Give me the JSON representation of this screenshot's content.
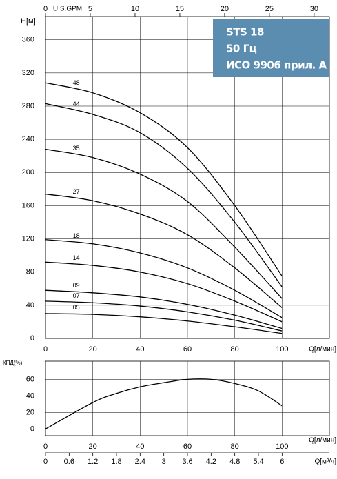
{
  "chart_data": [
    {
      "type": "line",
      "annotations": [
        "STS 18",
        "50 Гц",
        "ИСО 9906 прил. A"
      ],
      "ylabel": "H[м]",
      "xlabel": "Q[л/мин]",
      "x2label": "U.S.GPM",
      "x": [
        0,
        20,
        40,
        60,
        80,
        100
      ],
      "series": [
        {
          "name": "48",
          "color": "#000000",
          "values": [
            308,
            296,
            272,
            230,
            160,
            75
          ]
        },
        {
          "name": "44",
          "color": "#000000",
          "values": [
            283,
            270,
            248,
            205,
            140,
            62
          ]
        },
        {
          "name": "35",
          "color": "#000000",
          "values": [
            228,
            218,
            198,
            165,
            110,
            48
          ]
        },
        {
          "name": "27",
          "color": "#000000",
          "values": [
            174,
            166,
            150,
            125,
            85,
            37
          ]
        },
        {
          "name": "18",
          "color": "#000000",
          "values": [
            119,
            114,
            103,
            85,
            58,
            25
          ]
        },
        {
          "name": "14",
          "color": "#000000",
          "values": [
            92,
            88,
            80,
            66,
            45,
            20
          ]
        },
        {
          "name": "09",
          "color": "#000000",
          "values": [
            58,
            55,
            50,
            41,
            28,
            12
          ]
        },
        {
          "name": "07",
          "color": "#000000",
          "values": [
            45,
            43,
            39,
            32,
            22,
            9
          ]
        },
        {
          "name": "05",
          "color": "#000000",
          "values": [
            30,
            29,
            26,
            21,
            14,
            6
          ]
        }
      ],
      "xlim": [
        0,
        120
      ],
      "xticks": [
        0,
        20,
        40,
        60,
        80,
        100
      ],
      "ylim": [
        0,
        388
      ],
      "yticks": [
        0,
        40,
        80,
        120,
        160,
        200,
        240,
        280,
        320,
        360
      ],
      "x2lim": [
        0,
        31.7
      ],
      "x2ticks": [
        0,
        5,
        10,
        15,
        20,
        25,
        30
      ],
      "grid": true
    },
    {
      "type": "line",
      "ylabel": "КПД(%)",
      "xlabel": "Q[л/мин]",
      "x2label": "Q[м³/ч]",
      "x": [
        0,
        20,
        30,
        40,
        50,
        60,
        70,
        80,
        90,
        100
      ],
      "series": [
        {
          "color": "#000000",
          "values": [
            0,
            32,
            43,
            51,
            56,
            60,
            60,
            55,
            46,
            28
          ]
        }
      ],
      "xlim": [
        0,
        120
      ],
      "xticks": [
        0,
        20,
        40,
        60,
        80,
        100
      ],
      "ylim": [
        -8,
        82
      ],
      "yticks": [
        0,
        20,
        40,
        60
      ],
      "x2lim": [
        0,
        7.2
      ],
      "x2ticks": [
        0,
        0.6,
        1.2,
        1.8,
        2.4,
        3,
        3.6,
        4.2,
        4.8,
        5.4,
        6
      ],
      "grid": true
    }
  ]
}
